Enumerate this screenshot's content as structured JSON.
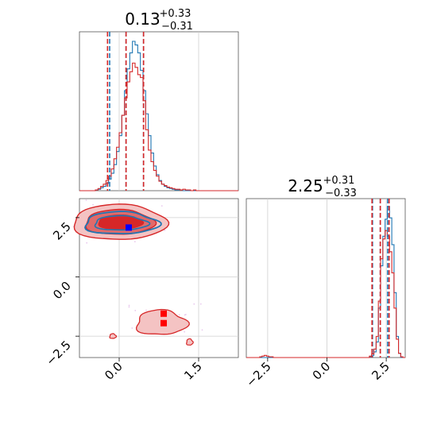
{
  "chart_data": [
    {
      "type": "histogram",
      "panel": "marginal-x",
      "title_main": "0.13",
      "title_plus": "+0.33",
      "title_minus": "−0.31",
      "xlim": [
        -0.75,
        2.25
      ],
      "grid": true,
      "series": [
        {
          "name": "",
          "color": "#1f77b4",
          "median": 0.13,
          "quantiles": [
            -0.18,
            0.13,
            0.46
          ],
          "bins": [
            -0.75,
            2.25
          ],
          "counts": [
            0,
            0,
            0,
            0,
            0,
            0,
            1,
            2,
            4,
            6,
            10,
            16,
            24,
            36,
            54,
            76,
            104,
            138,
            168,
            190,
            206,
            201,
            190,
            166,
            138,
            106,
            76,
            52,
            34,
            22,
            14,
            9,
            6,
            4,
            3,
            2,
            1,
            1,
            1,
            0,
            0,
            0,
            0,
            0,
            0,
            0,
            0,
            0,
            0,
            0,
            0,
            0,
            0,
            0,
            0,
            0,
            0,
            0,
            0,
            0
          ]
        },
        {
          "name": "",
          "color": "#d62728",
          "median": 0.13,
          "quantiles": [
            -0.22,
            0.13,
            0.46
          ],
          "bins": [
            -0.75,
            2.25
          ],
          "counts": [
            0,
            0,
            0,
            0,
            0,
            0,
            1,
            3,
            6,
            9,
            14,
            20,
            30,
            44,
            60,
            80,
            104,
            128,
            150,
            164,
            176,
            170,
            160,
            156,
            124,
            84,
            56,
            40,
            28,
            20,
            13,
            9,
            7,
            5,
            4,
            3,
            2,
            2,
            1,
            2,
            1,
            1,
            0,
            1,
            0,
            0,
            0,
            0,
            0,
            0,
            0,
            0,
            0,
            0,
            0,
            0,
            0,
            0,
            0,
            0
          ]
        }
      ]
    },
    {
      "type": "contour",
      "panel": "joint",
      "xlim": [
        -0.75,
        2.25
      ],
      "ylim": [
        -3.4,
        3.3
      ],
      "xticks": [
        "0.0",
        "1.5"
      ],
      "yticks": [
        "2.5",
        "0.0",
        "−2.5"
      ],
      "grid": true,
      "modes": [
        {
          "x": 0.0,
          "y": 2.3,
          "sx": 0.42,
          "sy": 0.55
        },
        {
          "x": 0.85,
          "y": -1.8,
          "sx": 0.35,
          "sy": 0.4
        }
      ],
      "markers": [
        {
          "x": 0.18,
          "y": 2.08,
          "color": "#0000ff",
          "shape": "square"
        },
        {
          "x": 0.84,
          "y": -1.55,
          "color": "#ff0000",
          "shape": "square"
        },
        {
          "x": 0.84,
          "y": -1.95,
          "color": "#ff0000",
          "shape": "square"
        }
      ],
      "colors": {
        "blue": "#1f77b4",
        "red": "#d62728",
        "red_fill_outer": "#f4c3c3",
        "red_fill_inner": "#e06a6a"
      }
    },
    {
      "type": "histogram",
      "panel": "marginal-y",
      "title_main": "2.25",
      "title_plus": "+0.31",
      "title_minus": "−0.33",
      "xlim": [
        -3.4,
        3.3
      ],
      "xticks": [
        "−2.5",
        "0.0",
        "2.5"
      ],
      "grid": true,
      "series": [
        {
          "name": "",
          "color": "#1f77b4",
          "median": 2.25,
          "quantiles": [
            1.92,
            2.25,
            2.56
          ],
          "bins": [
            -3.4,
            3.3
          ],
          "counts": [
            0,
            0,
            0,
            0,
            0,
            0,
            0,
            0,
            0,
            0,
            0,
            0,
            0,
            0,
            0,
            0,
            0,
            0,
            0,
            0,
            0,
            0,
            0,
            0,
            0,
            0,
            0,
            0,
            0,
            0,
            0,
            0,
            0,
            0,
            0,
            0,
            0,
            0,
            0,
            0,
            0,
            0,
            0,
            0,
            0,
            0,
            0,
            0,
            0,
            0,
            0,
            0,
            0,
            0,
            0,
            1,
            3,
            8,
            22,
            70,
            130,
            172,
            196,
            214,
            198,
            160,
            92,
            30,
            6,
            0,
            0
          ]
        },
        {
          "name": "",
          "color": "#d62728",
          "median": 2.25,
          "quantiles": [
            1.9,
            2.25,
            2.62
          ],
          "bins": [
            -3.4,
            3.3
          ],
          "counts": [
            0,
            0,
            0,
            0,
            0,
            0,
            1,
            2,
            3,
            2,
            1,
            1,
            0,
            0,
            0,
            0,
            0,
            0,
            0,
            0,
            0,
            0,
            0,
            0,
            0,
            0,
            0,
            0,
            0,
            0,
            0,
            0,
            0,
            0,
            0,
            0,
            0,
            0,
            0,
            0,
            0,
            0,
            0,
            0,
            0,
            0,
            0,
            0,
            0,
            0,
            0,
            0,
            0,
            0,
            0,
            2,
            5,
            12,
            30,
            80,
            140,
            168,
            180,
            172,
            150,
            120,
            70,
            26,
            6,
            1,
            0
          ]
        }
      ]
    }
  ]
}
